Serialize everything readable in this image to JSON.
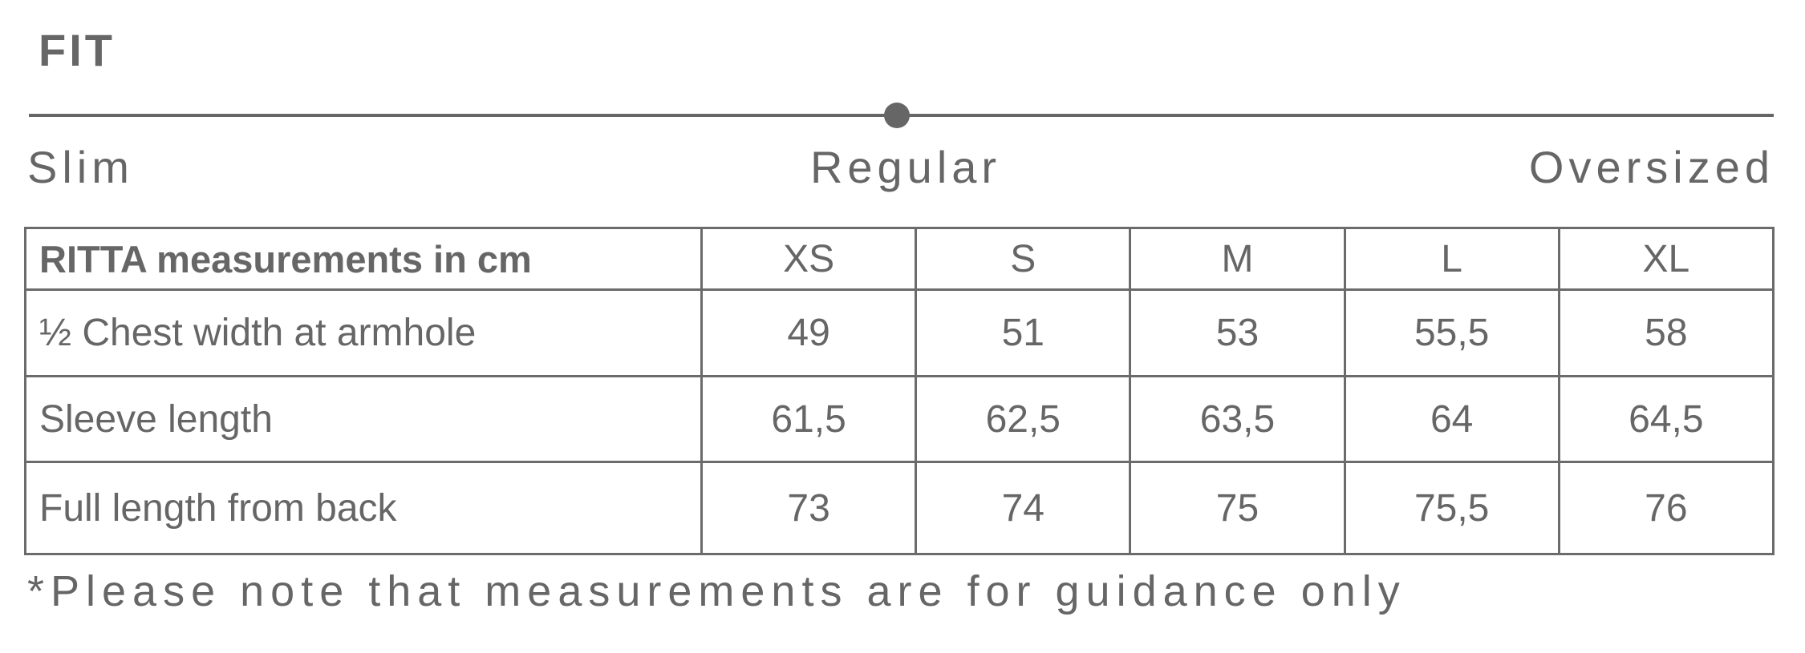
{
  "fit": {
    "title": "FIT",
    "scale": {
      "labels": [
        "Slim",
        "Regular",
        "Oversized"
      ],
      "selected": "Regular",
      "position_fraction": 0.5
    },
    "color": "#666666"
  },
  "table": {
    "header": [
      "RITTA measurements in cm",
      "XS",
      "S",
      "M",
      "L",
      "XL"
    ],
    "rows": [
      [
        "½ Chest width at armhole",
        "49",
        "51",
        "53",
        "55,5",
        "58"
      ],
      [
        "Sleeve length",
        "61,5",
        "62,5",
        "63,5",
        "64",
        "64,5"
      ],
      [
        "Full length from back",
        "73",
        "74",
        "75",
        "75,5",
        "76"
      ]
    ]
  },
  "footnote": "*Please note that measurements are for guidance only"
}
